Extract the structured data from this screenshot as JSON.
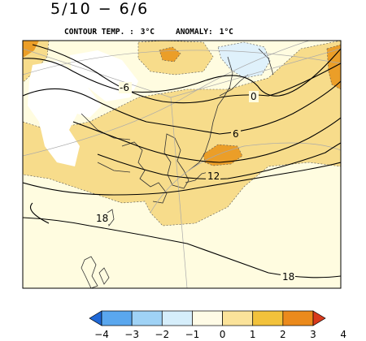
{
  "header": {
    "period": "5/10 − 6/6",
    "contour_label": "CONTOUR TEMP. :",
    "contour_value": "3°C",
    "anomaly_label": "ANOMALY:",
    "anomaly_value": "1°C"
  },
  "contour_labels": [
    "-6",
    "0",
    "6",
    "12",
    "18",
    "18"
  ],
  "colorbar": {
    "ticks": [
      "−4",
      "−3",
      "−2",
      "−1",
      "0",
      "1",
      "2",
      "3",
      "4"
    ],
    "colors": [
      "#1f68d6",
      "#5aa7ee",
      "#9fd2f5",
      "#d6eefb",
      "#fffbe6",
      "#fbe39a",
      "#f2c23b",
      "#eb8a1c",
      "#d83a1c"
    ]
  },
  "map_colors": {
    "ocean": "#fffce0",
    "warm1": "#f7dc8b",
    "warm2": "#f1c24a",
    "warm3": "#eb9e28",
    "cool1": "#dff1fb",
    "no_data": "#ffffff"
  }
}
